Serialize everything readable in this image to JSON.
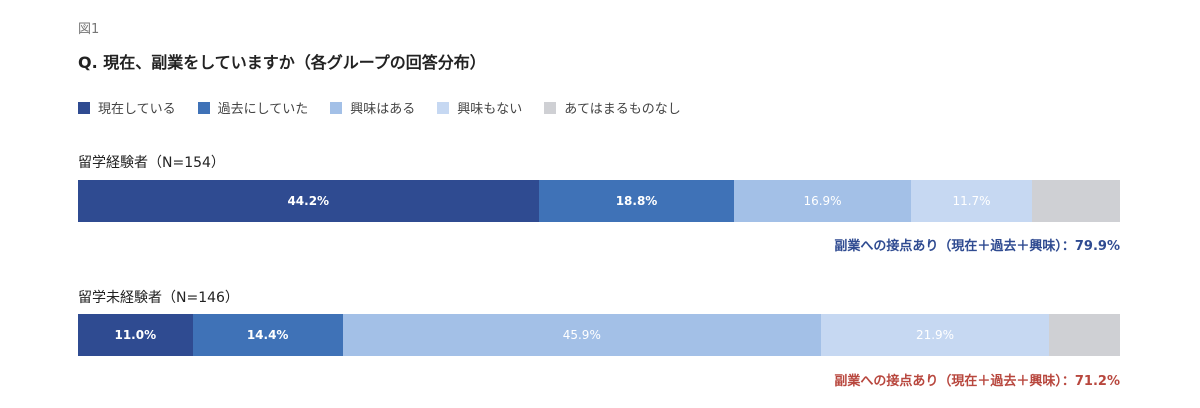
{
  "figure_label": "図1",
  "title": "Q. 現在、副業をしていますか（各グループの回答分布）",
  "colors": {
    "current": "#2f4b91",
    "past": "#3f72b7",
    "interested": "#a3c0e7",
    "not_interested": "#c6d8f2",
    "none": "#cfd0d4",
    "summary_a": "#2f4b91",
    "summary_b": "#b8473e"
  },
  "chart_data": {
    "type": "bar",
    "orientation": "horizontal-stacked-100",
    "legend": [
      {
        "key": "current",
        "label": "現在している"
      },
      {
        "key": "past",
        "label": "過去にしていた"
      },
      {
        "key": "interested",
        "label": "興味はある"
      },
      {
        "key": "not_interested",
        "label": "興味もない"
      },
      {
        "key": "none",
        "label": "あてはまるものなし"
      }
    ],
    "groups": [
      {
        "label": "留学経験者（N=154）",
        "values": [
          44.2,
          18.8,
          16.9,
          11.7,
          8.4
        ],
        "labels": [
          "44.2%",
          "18.8%",
          "16.9%",
          "11.7%",
          ""
        ],
        "summary": "副業への接点あり（現在＋過去＋興味）：79.9%",
        "summary_color_key": "summary_a"
      },
      {
        "label": "留学未経験者（N=146）",
        "values": [
          11.0,
          14.4,
          45.9,
          21.9,
          6.8
        ],
        "labels": [
          "11.0%",
          "14.4%",
          "45.9%",
          "21.9%",
          ""
        ],
        "summary": "副業への接点あり（現在＋過去＋興味）：71.2%",
        "summary_color_key": "summary_b"
      }
    ]
  }
}
